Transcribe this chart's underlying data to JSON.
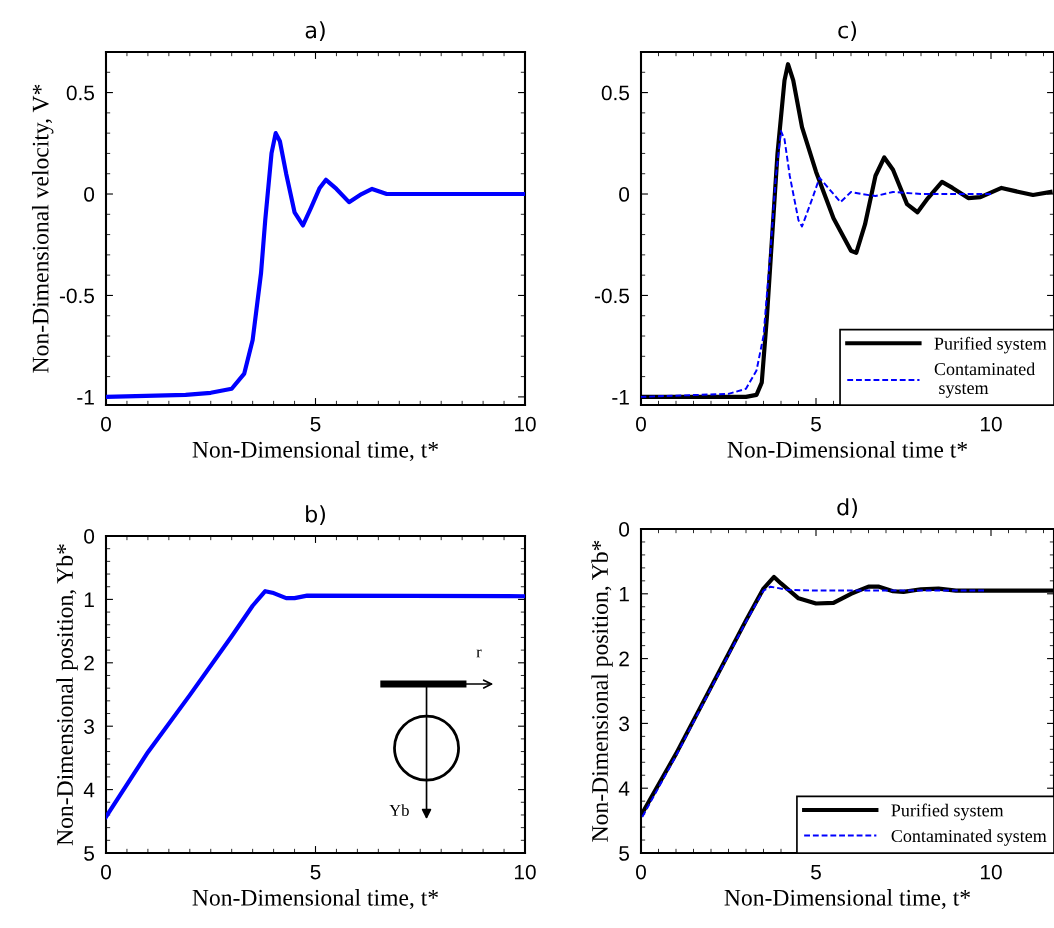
{
  "chart_data": [
    {
      "type": "line",
      "title": "a)",
      "xlabel": "Non-Dimensional time, t*",
      "ylabel": "Non-Dimensional velocity, V*",
      "xlim": [
        0,
        10
      ],
      "ylim": [
        -1.04,
        0.7
      ],
      "xticks": [
        0,
        5,
        10
      ],
      "yticks": [
        -1,
        -0.5,
        0,
        0.5
      ],
      "grid": false,
      "legend": false,
      "series": [
        {
          "color": "#0000ff",
          "line_style": "solid",
          "x": [
            0,
            1.9,
            2.5,
            3.0,
            3.3,
            3.5,
            3.7,
            3.8,
            3.95,
            4.05,
            4.15,
            4.3,
            4.5,
            4.7,
            4.9,
            5.1,
            5.25,
            5.5,
            5.8,
            6.1,
            6.35,
            6.7,
            10
          ],
          "values": [
            -1,
            -0.99,
            -0.98,
            -0.96,
            -0.885,
            -0.72,
            -0.39,
            -0.13,
            0.2,
            0.3,
            0.26,
            0.1,
            -0.09,
            -0.155,
            -0.065,
            0.03,
            0.07,
            0.025,
            -0.04,
            0,
            0.025,
            0,
            0
          ]
        }
      ]
    },
    {
      "type": "line",
      "title": "c)",
      "xlabel": "Non-Dimensional time t*",
      "xlim": [
        0,
        11.8
      ],
      "ylim": [
        -1.04,
        0.7
      ],
      "xticks": [
        0,
        5,
        10
      ],
      "yticks": [
        -1,
        -0.5,
        0,
        0.5
      ],
      "grid": false,
      "legend": "bottom right",
      "series": [
        {
          "name": "Purified system",
          "color": "#000000",
          "line_style": "solid",
          "x": [
            0,
            3.0,
            3.3,
            3.45,
            3.6,
            3.75,
            3.9,
            4.1,
            4.2,
            4.35,
            4.6,
            5.0,
            5.5,
            6.0,
            6.15,
            6.4,
            6.7,
            6.95,
            7.2,
            7.6,
            7.9,
            8.2,
            8.6,
            8.9,
            9.35,
            9.7,
            10.3,
            10.8,
            11.2,
            11.7
          ],
          "values": [
            -1,
            -1,
            -0.99,
            -0.93,
            -0.6,
            -0.2,
            0.2,
            0.56,
            0.64,
            0.56,
            0.33,
            0.11,
            -0.12,
            -0.28,
            -0.29,
            -0.15,
            0.09,
            0.18,
            0.12,
            -0.05,
            -0.09,
            -0.02,
            0.06,
            0.03,
            -0.02,
            -0.015,
            0.03,
            0.01,
            -0.005,
            0.01
          ]
        },
        {
          "name": "Contaminated\n system",
          "color": "#0000ff",
          "line_style": "dashed",
          "x": [
            0,
            2.5,
            3.0,
            3.3,
            3.5,
            3.7,
            3.85,
            4.0,
            4.1,
            4.25,
            4.5,
            4.6,
            4.9,
            5.1,
            5.3,
            5.7,
            6.0,
            6.3,
            6.7,
            7.2,
            8,
            10
          ],
          "values": [
            -1,
            -0.985,
            -0.96,
            -0.87,
            -0.7,
            -0.28,
            0.08,
            0.31,
            0.27,
            0.09,
            -0.13,
            -0.16,
            -0.02,
            0.08,
            0.04,
            -0.04,
            0.01,
            0,
            -0.01,
            0.01,
            0,
            0
          ]
        }
      ]
    },
    {
      "type": "line",
      "title": "b)",
      "xlabel": "Non-Dimensional time, t*",
      "ylabel": "Non-Dimensional position, Yb*",
      "xlim": [
        0,
        10
      ],
      "ylim": [
        5,
        0
      ],
      "xticks": [
        0,
        5,
        10
      ],
      "yticks": [
        0,
        1,
        2,
        3,
        4,
        5
      ],
      "grid": false,
      "legend": false,
      "annotations": [
        "r",
        "Yb"
      ],
      "series": [
        {
          "color": "#0000ff",
          "line_style": "solid",
          "x": [
            0,
            1,
            2,
            3,
            3.5,
            3.8,
            4.0,
            4.3,
            4.5,
            4.8,
            10
          ],
          "values": [
            4.43,
            3.41,
            2.51,
            1.58,
            1.1,
            0.87,
            0.9,
            0.98,
            0.98,
            0.94,
            0.95
          ]
        }
      ]
    },
    {
      "type": "line",
      "title": "d)",
      "xlabel": "Non-Dimensional time, t*",
      "ylabel": "Non-Dimensional position, Yb*",
      "xlim": [
        0,
        11.8
      ],
      "ylim": [
        5,
        0
      ],
      "xticks": [
        0,
        5,
        10
      ],
      "yticks": [
        0,
        1,
        2,
        3,
        4,
        5
      ],
      "grid": false,
      "legend": "bottom right",
      "series": [
        {
          "name": "Purified system",
          "color": "#000000",
          "line_style": "solid",
          "x": [
            0,
            1,
            2,
            3,
            3.5,
            3.8,
            4.0,
            4.5,
            5,
            5.5,
            6.0,
            6.5,
            6.8,
            7.2,
            7.5,
            8,
            8.5,
            9,
            11.8
          ],
          "values": [
            4.42,
            3.47,
            2.44,
            1.41,
            0.92,
            0.74,
            0.84,
            1.07,
            1.15,
            1.14,
            1.0,
            0.89,
            0.89,
            0.96,
            0.97,
            0.93,
            0.92,
            0.95,
            0.95
          ]
        },
        {
          "name": "Contaminated system",
          "color": "#0000ff",
          "line_style": "dashed",
          "x": [
            0,
            1,
            2,
            3,
            3.5,
            3.7,
            4.2,
            5,
            9.8
          ],
          "values": [
            4.48,
            3.5,
            2.46,
            1.43,
            0.95,
            0.89,
            0.94,
            0.95,
            0.95
          ]
        }
      ]
    }
  ]
}
